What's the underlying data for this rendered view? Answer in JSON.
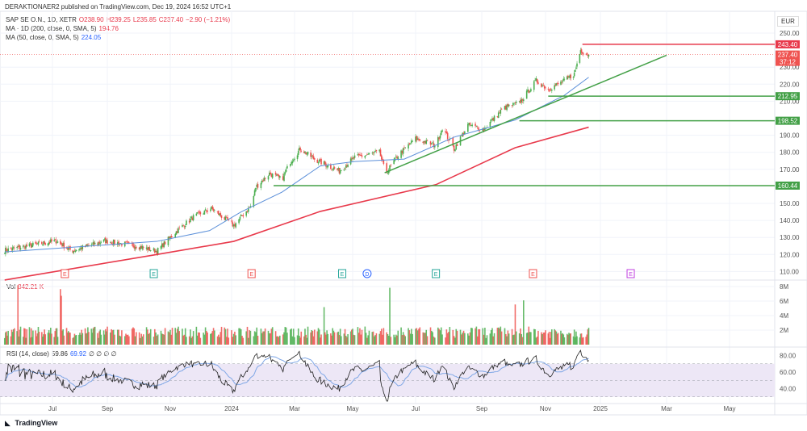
{
  "header": {
    "publisher": "DERAKTIONAER2 published on TradingView.com, Dec 19, 2024 16:52 UTC+1"
  },
  "legend": {
    "symbol": "SAP SE O.N., 1D, XETR",
    "open": "O238.90",
    "high": "H239.25",
    "low": "L235.85",
    "close": "C237.40",
    "change": "−2.90 (−1.21%)",
    "ma200": "MA · 1D (200, close, 0, SMA, 5)",
    "ma200_value": "194.76",
    "ma50": "MA (50, close, 0, SMA, 5)",
    "ma50_value": "224.05"
  },
  "currency": "EUR",
  "volume_legend": {
    "label": "Vol",
    "value": "842.21 K"
  },
  "rsi_legend": {
    "label": "RSI (14, close)",
    "value": "59.86",
    "ma_value": "69.92",
    "extra": "∅ ∅ ∅ ∅"
  },
  "footer": {
    "brand": "TradingView"
  },
  "colors": {
    "up": "#4caf50",
    "down": "#ef5350",
    "ma200": "#e8394b",
    "ma50": "#5b8fd9",
    "level": "#43a047",
    "resistance": "#e8394b",
    "rsi": "#222222",
    "rsi_ma": "#7fa7e6",
    "rsi_band": "#ede7f6"
  },
  "chart_data": {
    "type": "candlestick",
    "price_axis": {
      "ticks": [
        "250.00",
        "230.00",
        "220.00",
        "210.00",
        "190.00",
        "180.00",
        "170.00",
        "150.00",
        "140.00",
        "130.00",
        "120.00",
        "110.00"
      ],
      "range": [
        105,
        255
      ]
    },
    "time_axis": {
      "ticks": [
        "Jul",
        "Sep",
        "Nov",
        "2024",
        "Mar",
        "May",
        "Jul",
        "Sep",
        "Nov",
        "2025",
        "Mar",
        "May"
      ]
    },
    "close_path": [
      [
        "2023-05-08",
        122.5
      ],
      [
        "2023-07-05",
        128
      ],
      [
        "2023-07-23",
        122
      ],
      [
        "2023-08-29",
        128
      ],
      [
        "2023-09-29",
        125
      ],
      [
        "2023-10-19",
        122
      ],
      [
        "2023-11-04",
        132
      ],
      [
        "2023-11-24",
        142
      ],
      [
        "2023-12-12",
        147
      ],
      [
        "2024-01-03",
        137
      ],
      [
        "2024-01-20",
        149
      ],
      [
        "2024-01-24",
        159.5
      ],
      [
        "2024-02-06",
        167.5
      ],
      [
        "2024-02-18",
        164
      ],
      [
        "2024-02-26",
        174.6
      ],
      [
        "2024-03-07",
        182
      ],
      [
        "2024-03-22",
        176
      ],
      [
        "2024-04-17",
        169
      ],
      [
        "2024-05-03",
        177
      ],
      [
        "2024-05-27",
        180
      ],
      [
        "2024-06-02",
        167.5
      ],
      [
        "2024-06-15",
        179
      ],
      [
        "2024-07-01",
        188
      ],
      [
        "2024-07-20",
        184
      ],
      [
        "2024-07-26",
        194.5
      ],
      [
        "2024-08-06",
        182
      ],
      [
        "2024-08-19",
        196
      ],
      [
        "2024-09-03",
        193.6
      ],
      [
        "2024-09-22",
        206
      ],
      [
        "2024-10-07",
        209
      ],
      [
        "2024-10-23",
        222
      ],
      [
        "2024-11-04",
        217
      ],
      [
        "2024-11-22",
        222
      ],
      [
        "2024-12-03",
        226
      ],
      [
        "2024-12-10",
        240
      ],
      [
        "2024-12-19",
        237.4
      ]
    ],
    "ma200": [
      [
        "2023-05-08",
        105
      ],
      [
        "2023-10-19",
        120
      ],
      [
        "2024-01-03",
        127.7
      ],
      [
        "2024-03-28",
        145.3
      ],
      [
        "2024-07-20",
        161
      ],
      [
        "2024-10-03",
        182.7
      ],
      [
        "2024-12-19",
        194.76
      ]
    ],
    "ma50": [
      [
        "2023-05-08",
        121.5
      ],
      [
        "2023-10-19",
        127.7
      ],
      [
        "2023-12-10",
        134
      ],
      [
        "2024-01-10",
        145
      ],
      [
        "2024-02-18",
        156.6
      ],
      [
        "2024-03-28",
        172
      ],
      [
        "2024-05-03",
        174.6
      ],
      [
        "2024-06-20",
        176
      ],
      [
        "2024-08-06",
        188.9
      ],
      [
        "2024-10-03",
        199
      ],
      [
        "2024-11-22",
        213.5
      ],
      [
        "2024-12-19",
        224.05
      ]
    ],
    "levels": [
      {
        "price": 243.4,
        "label": "243.40",
        "color": "resistance",
        "from": "2024-12-12"
      },
      {
        "price": 212.95,
        "label": "212.95",
        "color": "level",
        "from": "2024-11-04"
      },
      {
        "price": 198.52,
        "label": "198.52",
        "color": "level",
        "from": "2024-10-07"
      },
      {
        "price": 160.44,
        "label": "160.44",
        "color": "level",
        "from": "2024-02-10"
      }
    ],
    "trendline": [
      [
        "2024-06-01",
        168
      ],
      [
        "2025-03-01",
        237
      ]
    ],
    "last_price": {
      "label": "237.40",
      "countdown": "37:12"
    },
    "events": [
      {
        "date": "2023-07-15",
        "type": "E"
      },
      {
        "date": "2023-10-16",
        "type": "E"
      },
      {
        "date": "2024-01-20",
        "type": "E"
      },
      {
        "date": "2024-04-20",
        "type": "E"
      },
      {
        "date": "2024-05-15",
        "type": "D"
      },
      {
        "date": "2024-07-20",
        "type": "E"
      },
      {
        "date": "2024-10-20",
        "type": "E"
      },
      {
        "date": "2025-01-28",
        "type": "E"
      }
    ],
    "volume_axis": {
      "ticks": [
        "8M",
        "6M",
        "4M",
        "2M"
      ]
    },
    "rsi_axis": {
      "ticks": [
        "80.00",
        "60.00",
        "40.00"
      ],
      "band": [
        30,
        70
      ]
    }
  }
}
